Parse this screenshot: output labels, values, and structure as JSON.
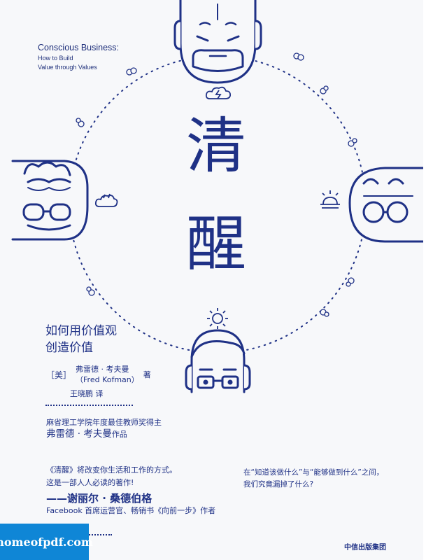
{
  "english_title": {
    "main": "Conscious Business:",
    "line2": "How to Build",
    "line3": "Value through Values"
  },
  "title": {
    "char1": "清",
    "char2": "醒"
  },
  "subtitle": {
    "line1": "如何用价值观",
    "line2": "创造价值"
  },
  "author": {
    "nationality": "［美］",
    "name_cn": "弗雷德 · 考夫曼",
    "name_en": "（Fred Kofman）",
    "role": "著",
    "translator": "王晓鹏 译"
  },
  "author_intro": {
    "line1": "麻省理工学院年度最佳教师奖得主",
    "line2_name": "弗雷德 · 考夫曼",
    "line2_suffix": "作品"
  },
  "quote": {
    "line1": "《清醒》将改变你生活和工作的方式。",
    "line2": "这是一部人人必读的著作!",
    "signature": "——谢丽尔 · 桑德伯格",
    "signature_desc": "Facebook 首席运营官、畅销书《向前一步》作者"
  },
  "right_question": {
    "line1": "在“知道该做什么”与“能够做到什么”之间，",
    "line2": "我们究竟漏掉了什么?"
  },
  "publisher": "中信出版集团",
  "watermark": "homeofpdf.com",
  "colors": {
    "ink": "#1f3186",
    "background": "#f7f8fa",
    "watermark_bg": "#0f86d6"
  }
}
